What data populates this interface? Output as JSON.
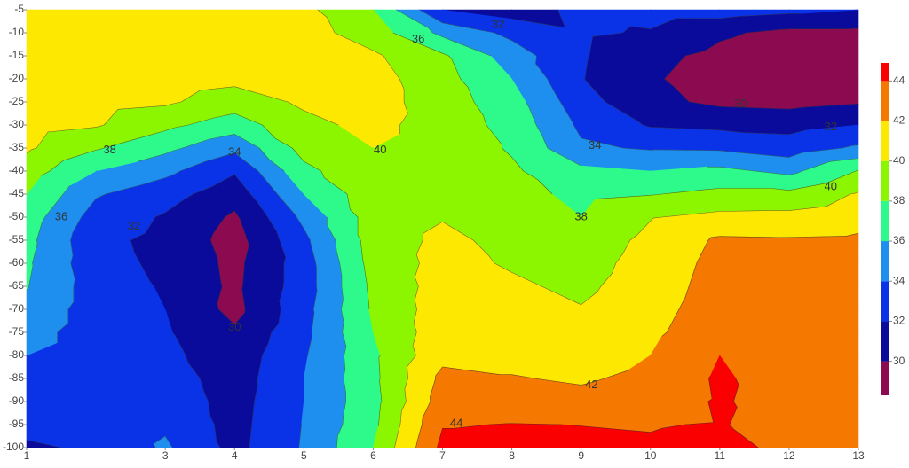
{
  "chart_data": {
    "type": "contour",
    "x": [
      1,
      2,
      3,
      4,
      5,
      6,
      7,
      8,
      9,
      10,
      11,
      12,
      13
    ],
    "y": [
      -5,
      -10,
      -15,
      -20,
      -25,
      -30,
      -35,
      -40,
      -45,
      -50,
      -55,
      -60,
      -65,
      -70,
      -75,
      -80,
      -85,
      -90,
      -95,
      -100
    ],
    "z": [
      [
        41,
        41,
        41,
        41.2,
        40.5,
        38,
        32,
        31,
        32.5,
        33,
        33,
        32.5,
        32
      ],
      [
        41,
        41,
        41,
        41.3,
        40.8,
        39,
        35.5,
        33.5,
        32.3,
        31.8,
        30.3,
        29.5,
        29.5
      ],
      [
        41,
        41,
        41,
        41.3,
        41,
        40.3,
        38.3,
        35,
        32.2,
        30.5,
        29.5,
        28.8,
        29
      ],
      [
        41,
        41,
        41,
        40.5,
        40.8,
        40.8,
        38.7,
        36,
        32.1,
        30.2,
        29.2,
        28.7,
        29
      ],
      [
        41,
        40.7,
        40.3,
        39,
        40.3,
        40.8,
        39,
        36.8,
        32.8,
        30.5,
        29.6,
        29.4,
        29.8
      ],
      [
        40.8,
        40.2,
        38.5,
        37,
        39.5,
        40.5,
        39.2,
        37.3,
        33.6,
        31.8,
        31.5,
        31.3,
        32
      ],
      [
        40.3,
        38.2,
        36.5,
        34.5,
        38.7,
        40,
        39.2,
        37.8,
        34.3,
        33.8,
        33.7,
        33,
        34.3
      ],
      [
        39,
        36,
        34.5,
        32.2,
        37.5,
        39.5,
        39.3,
        38.3,
        36.5,
        36,
        36.5,
        35.5,
        38.1
      ],
      [
        38,
        34.2,
        32.8,
        30.8,
        36,
        39.2,
        39.4,
        38.7,
        37.5,
        37.9,
        38.5,
        38.5,
        40.2
      ],
      [
        37,
        33.2,
        31.8,
        29.7,
        34.5,
        39,
        39.9,
        39,
        38,
        39.9,
        40.5,
        40.6,
        41.3
      ],
      [
        36.6,
        32.5,
        31.5,
        29.2,
        33.5,
        39,
        40.4,
        39.5,
        38.8,
        40.5,
        42.3,
        42.2,
        42.3
      ],
      [
        36.3,
        32.7,
        31.6,
        29.5,
        33,
        38.8,
        40.6,
        39.8,
        39.2,
        40.8,
        42.6,
        42.5,
        42.5
      ],
      [
        36.1,
        33,
        31.8,
        29.6,
        33,
        38.5,
        40.8,
        40.3,
        39.6,
        41,
        42.8,
        42.6,
        42.6
      ],
      [
        35.5,
        33,
        32,
        29.4,
        33.3,
        38.3,
        41,
        40.7,
        40.1,
        41.3,
        43,
        42.7,
        42.7
      ],
      [
        34.8,
        33,
        32.2,
        30.3,
        33.5,
        38,
        41.2,
        41,
        40.6,
        41.6,
        43.3,
        42.8,
        42.8
      ],
      [
        34,
        33,
        32.5,
        30.8,
        33.8,
        37.6,
        41.5,
        41.5,
        41.2,
        42,
        44,
        42.9,
        42.9
      ],
      [
        33.5,
        33,
        33,
        31,
        34,
        37.5,
        42.5,
        42.1,
        41.8,
        42.4,
        44.3,
        43,
        43
      ],
      [
        33,
        32.8,
        33.3,
        31.2,
        34,
        37.3,
        43,
        43,
        42.5,
        43,
        44.2,
        43.2,
        43.1
      ],
      [
        32.4,
        32.5,
        33.7,
        31.3,
        34.1,
        37.5,
        43.9,
        44.05,
        43.98,
        43.9,
        44.1,
        43.4,
        43.3
      ],
      [
        31.8,
        32.2,
        34.3,
        31.4,
        34.2,
        38,
        44.5,
        44.5,
        44.3,
        44.2,
        44.5,
        43.6,
        43.5
      ]
    ],
    "xlim": [
      1,
      13
    ],
    "ylim": [
      -100,
      -5
    ],
    "xticks": [
      1,
      3,
      4,
      5,
      6,
      7,
      8,
      9,
      10,
      11,
      12,
      13
    ],
    "yticks": [
      -5,
      -10,
      -15,
      -20,
      -25,
      -30,
      -35,
      -40,
      -45,
      -50,
      -55,
      -60,
      -65,
      -70,
      -75,
      -80,
      -85,
      -90,
      -95,
      -100
    ],
    "levels": [
      30,
      32,
      34,
      36,
      38,
      40,
      42,
      44
    ],
    "zlim": [
      28.3,
      44.9
    ],
    "colors": [
      "#8b0a50",
      "#0a0a9b",
      "#0a32e6",
      "#1e8fef",
      "#2efa8c",
      "#8cf500",
      "#fce800",
      "#f57800",
      "#fa0000"
    ],
    "contour_labels": [
      {
        "x": 2.2,
        "y": -35.5,
        "value": 38
      },
      {
        "x": 1.5,
        "y": -50,
        "value": 36
      },
      {
        "x": 2.55,
        "y": -52,
        "value": 32
      },
      {
        "x": 4.0,
        "y": -36,
        "value": 34
      },
      {
        "x": 4.0,
        "y": -74,
        "value": 30
      },
      {
        "x": 6.1,
        "y": -35.5,
        "value": 40
      },
      {
        "x": 6.65,
        "y": -11.5,
        "value": 36
      },
      {
        "x": 7.8,
        "y": -8.3,
        "value": 32
      },
      {
        "x": 9.2,
        "y": -34.5,
        "value": 34
      },
      {
        "x": 9.0,
        "y": -50,
        "value": 38
      },
      {
        "x": 11.3,
        "y": -25.5,
        "value": 30
      },
      {
        "x": 12.6,
        "y": -30.5,
        "value": 32
      },
      {
        "x": 12.6,
        "y": -43.5,
        "value": 40
      },
      {
        "x": 9.15,
        "y": -86.5,
        "value": 42
      },
      {
        "x": 7.2,
        "y": -94.8,
        "value": 44
      }
    ]
  }
}
